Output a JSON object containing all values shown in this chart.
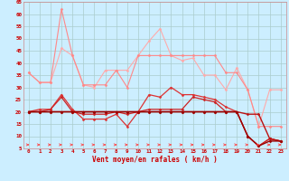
{
  "xlabel": "Vent moyen/en rafales ( km/h )",
  "bg_color": "#cceeff",
  "grid_color": "#aacccc",
  "x_values": [
    0,
    1,
    2,
    3,
    4,
    5,
    6,
    7,
    8,
    9,
    10,
    11,
    12,
    13,
    14,
    15,
    16,
    17,
    18,
    19,
    20,
    21,
    22,
    23
  ],
  "ylim": [
    5,
    65
  ],
  "yticks": [
    5,
    10,
    15,
    20,
    25,
    30,
    35,
    40,
    45,
    50,
    55,
    60,
    65
  ],
  "series": [
    {
      "y": [
        36,
        32,
        32,
        46,
        43,
        31,
        30,
        37,
        37,
        37,
        43,
        49,
        54,
        43,
        41,
        42,
        35,
        35,
        29,
        38,
        29,
        14,
        29,
        29
      ],
      "color": "#ffaaaa",
      "lw": 0.8,
      "marker": "D",
      "ms": 1.5
    },
    {
      "y": [
        36,
        32,
        32,
        62,
        43,
        31,
        31,
        31,
        37,
        30,
        43,
        43,
        43,
        43,
        43,
        43,
        43,
        43,
        36,
        36,
        29,
        14,
        14,
        14
      ],
      "color": "#ff8888",
      "lw": 0.8,
      "marker": "D",
      "ms": 1.5
    },
    {
      "y": [
        20,
        21,
        21,
        27,
        21,
        17,
        17,
        17,
        19,
        14,
        20,
        27,
        26,
        30,
        27,
        27,
        26,
        25,
        22,
        20,
        10,
        6,
        9,
        8
      ],
      "color": "#dd3333",
      "lw": 0.9,
      "marker": "D",
      "ms": 1.5
    },
    {
      "y": [
        20,
        20,
        21,
        26,
        20,
        19,
        19,
        19,
        20,
        19,
        20,
        21,
        21,
        21,
        21,
        26,
        25,
        24,
        20,
        20,
        10,
        6,
        9,
        8
      ],
      "color": "#cc2222",
      "lw": 0.9,
      "marker": "D",
      "ms": 1.5
    },
    {
      "y": [
        20,
        20,
        20,
        20,
        20,
        20,
        20,
        20,
        20,
        20,
        20,
        20,
        20,
        20,
        20,
        20,
        20,
        20,
        20,
        20,
        19,
        19,
        9,
        8
      ],
      "color": "#bb1111",
      "lw": 1.0,
      "marker": "D",
      "ms": 1.5
    },
    {
      "y": [
        20,
        20,
        20,
        20,
        20,
        20,
        20,
        20,
        20,
        20,
        20,
        20,
        20,
        20,
        20,
        20,
        20,
        20,
        20,
        20,
        10,
        6,
        8,
        8
      ],
      "color": "#990000",
      "lw": 1.0,
      "marker": "D",
      "ms": 1.5
    }
  ],
  "arrow_color": "#ff4444",
  "text_color": "#cc0000",
  "spine_color": "#cc8888"
}
